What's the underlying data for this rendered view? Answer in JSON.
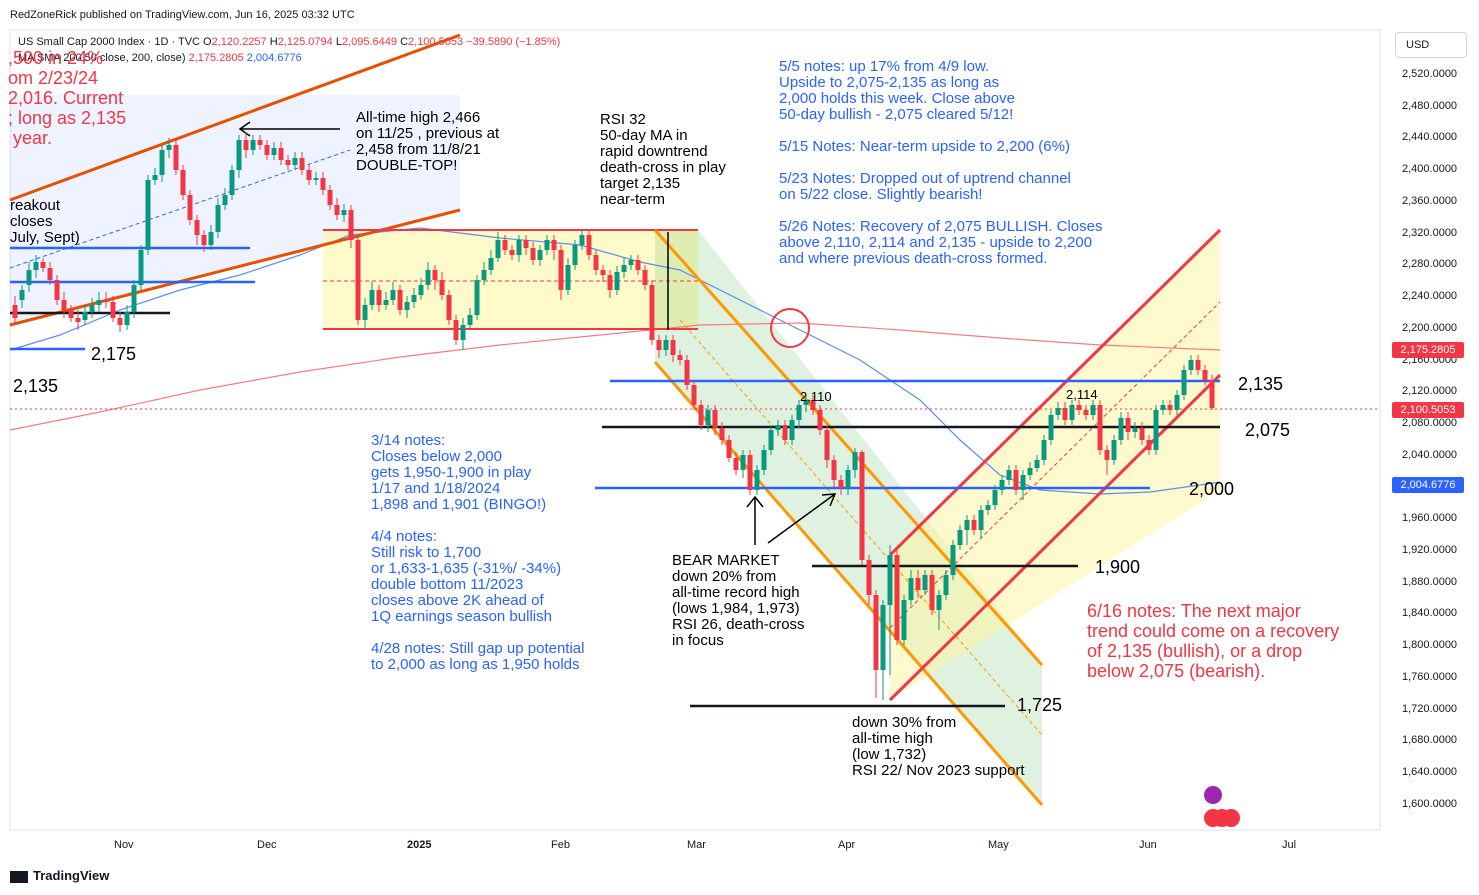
{
  "header": {
    "published": "RedZoneRick published on TradingView.com, Jun 16, 2025 03:32 UTC",
    "symbol": "US Small Cap 2000 Index · 1D · TVC",
    "o_label": "O",
    "o": "2,120.2257",
    "h_label": "H",
    "h": "2,125.0794",
    "l_label": "L",
    "l": "2,095.6449",
    "c_label": "C",
    "c": "2,100.5053",
    "change": "−39.5890 (−1.85%)",
    "ma_label": "MA SMA 200 50 close, 200, close)",
    "ma200": "2,175.2805",
    "ma50": "2,004.6776",
    "currency": "USD"
  },
  "colors": {
    "up": "#089981",
    "down": "#f23645",
    "ma50": "#5b8def",
    "ma200": "#f77c80",
    "blue_line": "#2962ff",
    "orange": "#ff9800",
    "red_channel": "#f23645"
  },
  "chart_data": {
    "type": "candlestick",
    "title": "US Small Cap 2000 Index · 1D · TVC",
    "y_range": [
      1580,
      2560
    ],
    "y_ticks": [
      "2,520.0000",
      "2,480.0000",
      "2,440.0000",
      "2,400.0000",
      "2,360.0000",
      "2,320.0000",
      "2,280.0000",
      "2,240.0000",
      "2,200.0000",
      "2,160.0000",
      "2,120.0000",
      "2,080.0000",
      "2,040.0000",
      "2,000.0000",
      "1,960.0000",
      "1,920.0000",
      "1,880.0000",
      "1,840.0000",
      "1,800.0000",
      "1,760.0000",
      "1,720.0000",
      "1,680.0000",
      "1,640.0000",
      "1,600.0000"
    ],
    "x_ticks": [
      "Nov",
      "Dec",
      "2025",
      "Feb",
      "Mar",
      "Apr",
      "May",
      "Jun",
      "Jul"
    ],
    "last_price": "2,100.5053",
    "ma200_value": "2,175.2805",
    "ma50_value": "2,004.6776",
    "series": [
      {
        "name": "MA 50",
        "values": [
          2165,
          2190,
          2215,
          2240,
          2265,
          2285,
          2300,
          2315,
          2320,
          2322,
          2315,
          2305,
          2295,
          2285,
          2270,
          2255,
          2235,
          2210,
          2180,
          2140,
          2100,
          2060,
          2030,
          2010,
          2004
        ]
      },
      {
        "name": "MA 200",
        "values": [
          2100,
          2115,
          2130,
          2145,
          2160,
          2170,
          2180,
          2190,
          2195,
          2200,
          2205,
          2210,
          2210,
          2208,
          2205,
          2200,
          2195,
          2190,
          2185,
          2180,
          2178,
          2176,
          2175
        ]
      }
    ],
    "levels": [
      "2,175",
      "2,135",
      "2,135",
      "2,110",
      "2,114",
      "2,075",
      "2,000",
      "1,900",
      "1,725"
    ]
  },
  "annotations": {
    "top_left_red": ",500 in 24%\nom 2/23/24\n2,016. Current\n; long as 2,135\n year.",
    "breakout": "reakout\ncloses\nJuly, Sept)",
    "ath": "All-time high 2,466\non 11/25 , previous at\n2,458 from 11/8/21\nDOUBLE-TOP!",
    "rsi32": "RSI 32\n50-day MA in\nrapid downtrend\ndeath-cross in play\ntarget 2,135\nnear-term",
    "notes_55": "5/5 notes: up 17% from 4/9 low.\nUpside to 2,075-2,135 as long as\n2,000 holds this week. Close above\n50-day bullish - 2,075 cleared 5/12!",
    "notes_515": "5/15 Notes: Near-term upside to 2,200 (6%)",
    "notes_523": "5/23 Notes: Dropped out of uptrend channel\non 5/22 close. Slightly bearish!",
    "notes_526": "5/26 Notes: Recovery of 2,075 BULLISH. Closes\nabove 2,110, 2,114 and 2,135 - upside to 2,200\nand where previous death-cross formed.",
    "notes_314": "3/14 notes:\nCloses below 2,000\ngets 1,950-1,900 in play\n1/17 and 1/18/2024\n1,898 and 1,901 (BINGO!)",
    "notes_44": "4/4 notes:\nStill risk to 1,700\nor 1,633-1,635 (-31%/ -34%)\ndouble bottom 11/2023\ncloses above 2K ahead of\n1Q earnings season bullish",
    "notes_428": "4/28 notes: Still gap up potential\nto 2,000 as long as 1,950 holds",
    "bear": "BEAR MARKET\ndown 20% from\nall-time record high\n(lows 1,984, 1,973)\nRSI 26, death-cross\nin focus",
    "down30": "down 30% from\nall-time high\n(low 1,732)\nRSI 22/ Nov 2023 support",
    "notes_616": "6/16 notes: The next major\ntrend could come on a recovery\nof 2,135 (bullish), or a drop\nbelow 2,075 (bearish)."
  },
  "footer": {
    "brand": "TradingView"
  }
}
